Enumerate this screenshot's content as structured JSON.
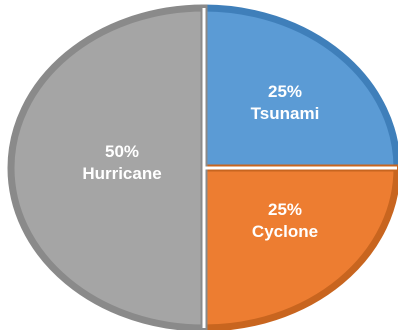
{
  "chart_data": {
    "type": "pie",
    "slices": [
      {
        "label": "Tsunami",
        "value": 25,
        "value_label": "25%",
        "color": "#5b9bd5",
        "edge_color": "#3f7fba"
      },
      {
        "label": "Cyclone",
        "value": 25,
        "value_label": "25%",
        "color": "#ed7d31",
        "edge_color": "#c8651f"
      },
      {
        "label": "Hurricane",
        "value": 50,
        "value_label": "50%",
        "color": "#a5a5a5",
        "edge_color": "#8a8a8a"
      }
    ],
    "start": "top",
    "direction": "clockwise",
    "legend": "none"
  }
}
